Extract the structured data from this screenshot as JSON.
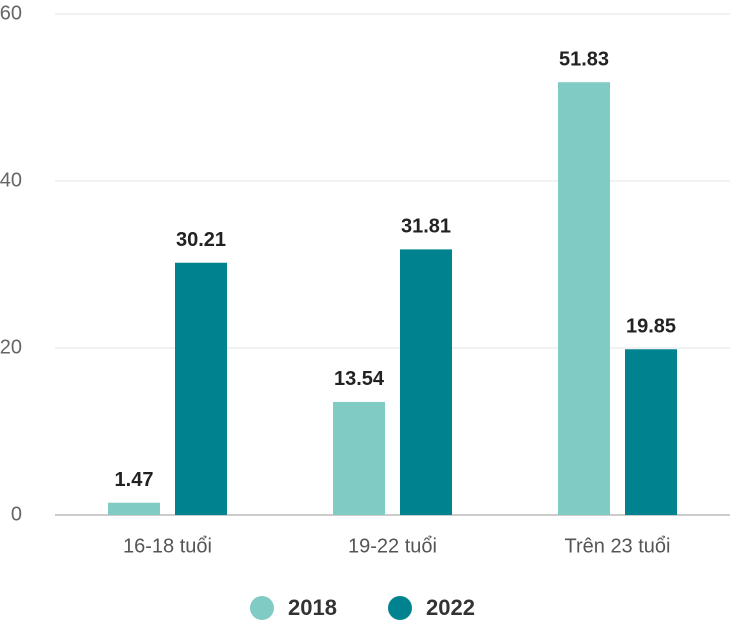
{
  "chart_data": {
    "type": "bar",
    "categories": [
      "16-18 tuổi",
      "19-22 tuổi",
      "Trên 23 tuổi"
    ],
    "series": [
      {
        "name": "2018",
        "color": "#80cbc4",
        "values": [
          1.47,
          13.54,
          51.83
        ]
      },
      {
        "name": "2022",
        "color": "#00838f",
        "values": [
          30.21,
          31.81,
          19.85
        ]
      }
    ],
    "ylim": [
      0,
      60
    ],
    "yticks": [
      0,
      20,
      40,
      60
    ],
    "grid": true,
    "legend": "bottom"
  }
}
